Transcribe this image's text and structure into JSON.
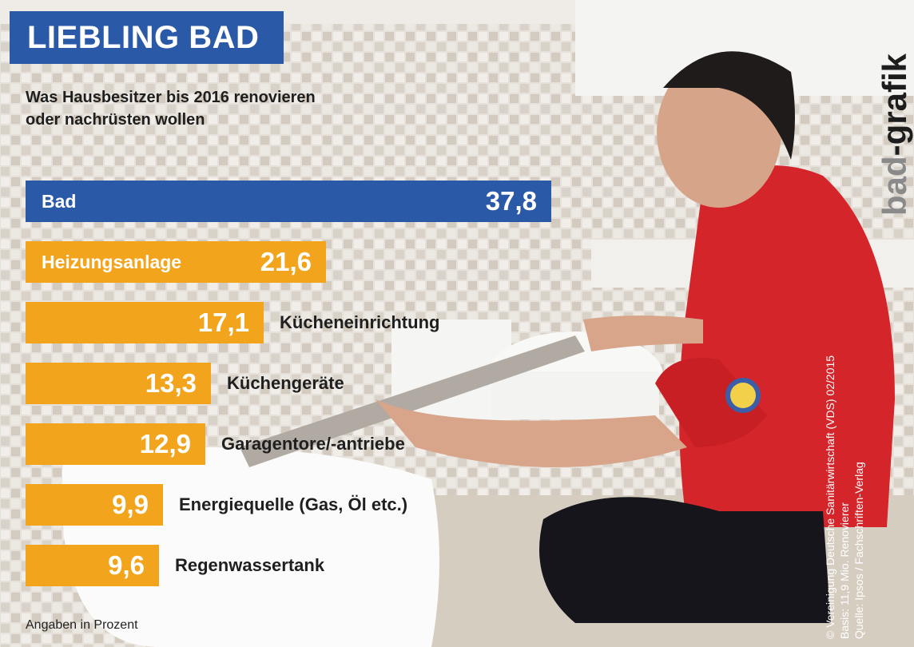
{
  "header": {
    "title": "LIEBLING BAD",
    "subtitle_line1": "Was Hausbesitzer bis 2016 renovieren",
    "subtitle_line2": "oder nachrüsten wollen"
  },
  "chart_data": {
    "type": "bar",
    "orientation": "horizontal",
    "categories": [
      "Bad",
      "Heizungsanlage",
      "Kücheneinrichtung",
      "Küchengeräte",
      "Garagentore/-antriebe",
      "Energiequelle (Gas, Öl etc.)",
      "Regenwassertank"
    ],
    "values": [
      37.8,
      21.6,
      17.1,
      13.3,
      12.9,
      9.9,
      9.6
    ],
    "value_labels": [
      "37,8",
      "21,6",
      "17,1",
      "13,3",
      "12,9",
      "9,9",
      "9,6"
    ],
    "highlight_color": "#2a59a8",
    "bar_color": "#f2a51c"
  },
  "footer": {
    "units_note": "Angaben in Prozent",
    "source_line1": "© Vereinigung Deutsche Sanitärwirtschaft (VDS) 02/2015",
    "source_line2": "Basis: 11,9 Mio. Renovierer",
    "source_line3": "Quelle: Ipsos / Fachschriften-Verlag"
  },
  "brand": {
    "logo_part1": "bad",
    "logo_part2": "-grafik"
  }
}
